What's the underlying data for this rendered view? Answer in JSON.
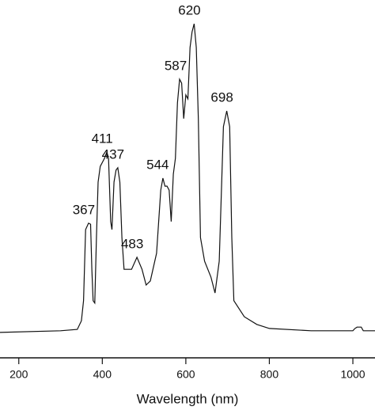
{
  "chart_data": {
    "type": "line",
    "x_label": "Wavelength (nm)",
    "x": [
      155,
      300,
      340,
      350,
      355,
      360,
      367,
      372,
      375,
      378,
      382,
      386,
      390,
      395,
      405,
      411,
      415,
      420,
      423,
      428,
      433,
      437,
      442,
      447,
      452,
      470,
      483,
      495,
      505,
      515,
      530,
      540,
      545,
      550,
      555,
      560,
      565,
      570,
      575,
      580,
      585,
      590,
      595,
      600,
      605,
      610,
      615,
      620,
      625,
      630,
      635,
      645,
      660,
      670,
      680,
      690,
      698,
      705,
      710,
      715,
      740,
      770,
      800,
      900,
      1000,
      1005,
      1010,
      1020,
      1025,
      1053
    ],
    "series": [
      {
        "color": "#111111",
        "values": [
          7.6,
          8.1,
          8.5,
          11.1,
          17.1,
          38.4,
          40.3,
          40.0,
          26.5,
          17.1,
          16.4,
          36.0,
          52.6,
          57.3,
          59.7,
          61.6,
          59.7,
          40.8,
          38.4,
          52.6,
          56.2,
          56.9,
          52.6,
          36.0,
          26.5,
          26.5,
          30.1,
          26.5,
          21.8,
          23.0,
          31.3,
          50.2,
          53.8,
          51.4,
          51.4,
          50.2,
          40.8,
          55.0,
          59.7,
          76.3,
          83.4,
          82.2,
          71.6,
          78.7,
          77.5,
          92.9,
          97.6,
          100,
          92.9,
          71.6,
          36.0,
          28.9,
          24.2,
          19.4,
          28.9,
          69.2,
          73.9,
          69.2,
          36.0,
          17.1,
          12.3,
          10.0,
          8.8,
          8.1,
          8.1,
          8.8,
          9.2,
          9.2,
          8.1,
          8.1
        ]
      }
    ],
    "peak_labels": [
      367,
      411,
      437,
      483,
      544,
      587,
      620,
      698
    ],
    "xlim": [
      155,
      1053
    ],
    "ylim": [
      0,
      100
    ],
    "xticks": [
      200,
      400,
      600,
      800,
      1000
    ]
  }
}
